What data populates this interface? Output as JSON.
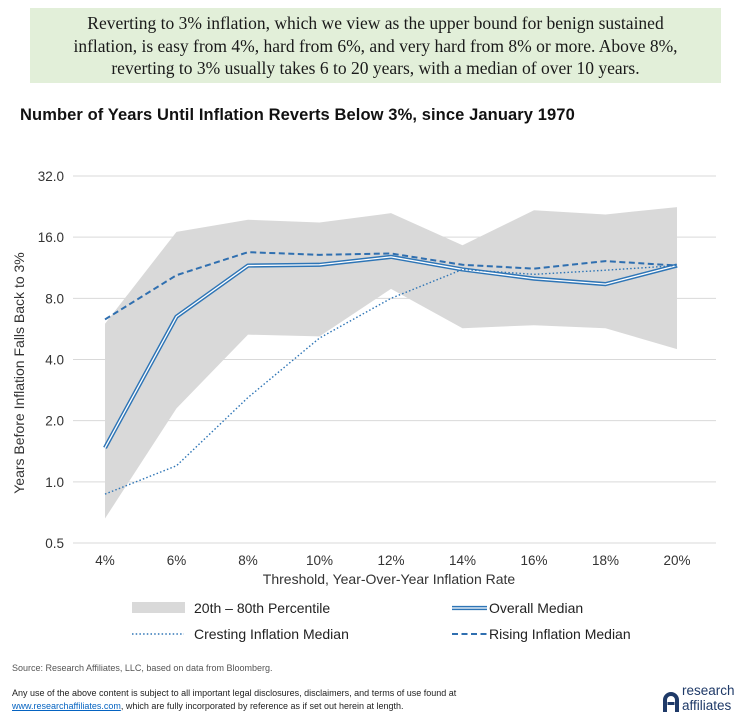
{
  "headline": {
    "line1": "Reverting to 3% inflation, which we view as the upper bound for benign sustained",
    "line2": "inflation, is easy from 4%, hard from 6%, and very hard from 8% or more. Above 8%,",
    "line3": "reverting to 3% usually takes 6 to 20 years, with a median of over 10 years."
  },
  "footer": {
    "source": "Source: Research Affiliates, LLC, based on data from Bloomberg.",
    "disclaimer_line1": "Any use of the above content is subject to all important legal disclosures, disclaimers, and terms of use found at",
    "disclaimer_link": "www.researchaffiliates.com",
    "disclaimer_line2_rest": ", which are fully incorporated by reference as if set out herein at length.",
    "logo_line1": "research",
    "logo_line2": "affiliates"
  },
  "colors": {
    "band": "#d9d9d9",
    "series": "#2e75b6",
    "grid": "#d9d9d9",
    "headline_bg": "#e2efd9"
  },
  "chart_data": {
    "type": "line",
    "title": "Number of Years Until Inflation Reverts Below 3%, since January 1970",
    "xlabel": "Threshold,  Year-Over-Year  Inflation  Rate",
    "ylabel": "Years Before Inflation  Falls Back to 3%",
    "y_scale": "log2",
    "ylim": [
      0.5,
      32
    ],
    "y_ticks": [
      "32.0",
      "16.0",
      "8.0",
      "4.0",
      "2.0",
      "1.0",
      "0.5"
    ],
    "y_tick_values": [
      32,
      16,
      8,
      4,
      2,
      1,
      0.5
    ],
    "categories": [
      "4%",
      "6%",
      "8%",
      "10%",
      "12%",
      "14%",
      "16%",
      "18%",
      "20%"
    ],
    "band": {
      "name": "20th – 80th Percentile",
      "upper": [
        6.0,
        17.0,
        19.5,
        18.9,
        21.0,
        14.6,
        21.7,
        20.7,
        22.5
      ],
      "lower": [
        0.66,
        2.3,
        5.3,
        5.2,
        8.9,
        5.7,
        5.9,
        5.7,
        4.5
      ]
    },
    "series": [
      {
        "name": "Overall Median",
        "style": "double",
        "values": [
          1.47,
          6.5,
          11.6,
          11.7,
          12.8,
          11.1,
          10.0,
          9.4,
          11.6
        ]
      },
      {
        "name": "Cresting Inflation Median",
        "style": "dotted",
        "values": [
          0.87,
          1.2,
          2.6,
          5.1,
          8.0,
          11.1,
          10.5,
          11.0,
          11.6
        ]
      },
      {
        "name": "Rising Inflation Median",
        "style": "dashed",
        "values": [
          6.3,
          10.4,
          13.5,
          13.1,
          13.3,
          11.7,
          11.2,
          12.2,
          11.6
        ]
      }
    ],
    "grid": true,
    "legend_placement": "bottom"
  }
}
